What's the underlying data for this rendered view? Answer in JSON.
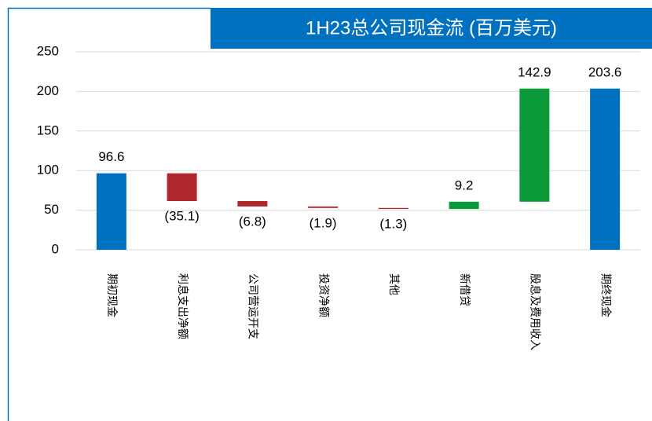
{
  "chart_data": {
    "type": "waterfall",
    "title": "1H23总公司现金流 (百万美元)",
    "categories": [
      "期初现金",
      "利息支出净额",
      "公司营运开支",
      "投资净额",
      "其他",
      "新借贷",
      "股息及费用收入",
      "期终现金"
    ],
    "values": [
      96.6,
      -35.1,
      -6.8,
      -1.9,
      -1.3,
      9.2,
      142.9,
      203.6
    ],
    "value_labels": [
      "96.6",
      "(35.1)",
      "(6.8)",
      "(1.9)",
      "(1.3)",
      "9.2",
      "142.9",
      "203.6"
    ],
    "measure": [
      "absolute",
      "relative",
      "relative",
      "relative",
      "relative",
      "relative",
      "relative",
      "absolute"
    ],
    "colors": [
      "#0070c0",
      "#b0272d",
      "#b0272d",
      "#b0272d",
      "#b0272d",
      "#0a9a3a",
      "#0a9a3a",
      "#0070c0"
    ],
    "ylim": [
      0,
      250
    ],
    "yticks": [
      0,
      50,
      100,
      150,
      200,
      250
    ],
    "grid": true
  }
}
